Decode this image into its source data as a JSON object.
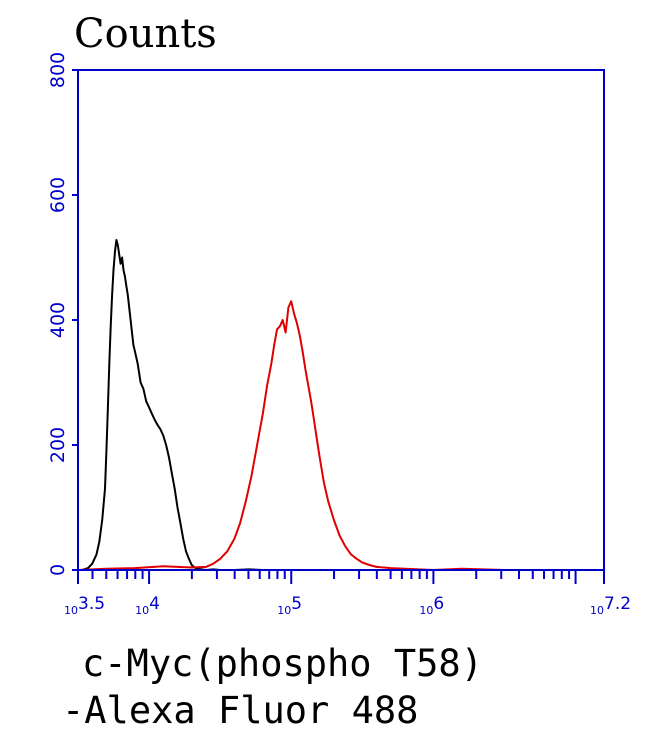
{
  "chart_data": {
    "type": "line",
    "title": "",
    "ylabel": "Counts",
    "xlabel_lines": [
      "c-Myc(phospho T58)",
      "-Alexa Fluor 488"
    ],
    "x_scale": "log10",
    "xlim": [
      3.5,
      7.2
    ],
    "ylim": [
      0,
      800
    ],
    "y_ticks": [
      0,
      200,
      400,
      600,
      800
    ],
    "y_tick_labels": [
      "0",
      "200",
      "400",
      "600",
      "800"
    ],
    "x_major_ticks": [
      3.5,
      4,
      5,
      6,
      7.2
    ],
    "x_tick_labels": [
      {
        "value": 3.5,
        "base": "10",
        "exp": "3.5"
      },
      {
        "value": 4,
        "base": "10",
        "exp": "4"
      },
      {
        "value": 5,
        "base": "10",
        "exp": "5"
      },
      {
        "value": 6,
        "base": "10",
        "exp": "6"
      },
      {
        "value": 7.2,
        "base": "10",
        "exp": "7.2"
      }
    ],
    "grid": false,
    "legend": "none",
    "axis_color": "#0000cc",
    "series": [
      {
        "color": "#000000",
        "x": [
          3.53,
          3.57,
          3.6,
          3.63,
          3.65,
          3.67,
          3.69,
          3.7,
          3.71,
          3.72,
          3.73,
          3.74,
          3.75,
          3.76,
          3.77,
          3.78,
          3.79,
          3.8,
          3.81,
          3.82,
          3.83,
          3.84,
          3.85,
          3.86,
          3.87,
          3.88,
          3.89,
          3.9,
          3.92,
          3.94,
          3.96,
          3.98,
          4.0,
          4.02,
          4.04,
          4.06,
          4.08,
          4.1,
          4.12,
          4.14,
          4.16,
          4.18,
          4.2,
          4.22,
          4.24,
          4.26,
          4.28,
          4.3,
          4.32,
          4.34,
          4.37,
          4.4,
          4.45,
          4.5,
          4.6,
          4.7,
          4.8,
          5.0,
          5.5,
          6.0
        ],
        "y": [
          0,
          3,
          10,
          25,
          45,
          80,
          130,
          190,
          260,
          330,
          390,
          440,
          480,
          510,
          528,
          520,
          505,
          490,
          500,
          480,
          470,
          455,
          440,
          420,
          400,
          380,
          360,
          350,
          330,
          300,
          290,
          270,
          260,
          250,
          240,
          232,
          225,
          215,
          200,
          180,
          155,
          130,
          100,
          75,
          50,
          30,
          18,
          8,
          4,
          2,
          1,
          0,
          1,
          0,
          0,
          1,
          0,
          0,
          0,
          0
        ]
      },
      {
        "color": "#e00000",
        "x": [
          3.5,
          3.7,
          3.9,
          4.1,
          4.3,
          4.4,
          4.45,
          4.5,
          4.55,
          4.6,
          4.64,
          4.68,
          4.72,
          4.76,
          4.8,
          4.83,
          4.86,
          4.88,
          4.9,
          4.92,
          4.94,
          4.96,
          4.98,
          5.0,
          5.02,
          5.04,
          5.06,
          5.08,
          5.1,
          5.12,
          5.14,
          5.16,
          5.18,
          5.2,
          5.23,
          5.26,
          5.3,
          5.34,
          5.38,
          5.42,
          5.46,
          5.5,
          5.55,
          5.6,
          5.7,
          5.8,
          5.9,
          6.0,
          6.2,
          6.5,
          7.0
        ],
        "y": [
          0,
          2,
          3,
          6,
          4,
          5,
          10,
          18,
          30,
          50,
          75,
          110,
          150,
          200,
          250,
          295,
          330,
          360,
          385,
          390,
          400,
          380,
          420,
          430,
          410,
          395,
          375,
          350,
          320,
          295,
          270,
          240,
          210,
          180,
          140,
          110,
          80,
          55,
          38,
          25,
          18,
          12,
          8,
          5,
          3,
          2,
          1,
          0,
          2,
          0,
          0
        ]
      }
    ]
  }
}
